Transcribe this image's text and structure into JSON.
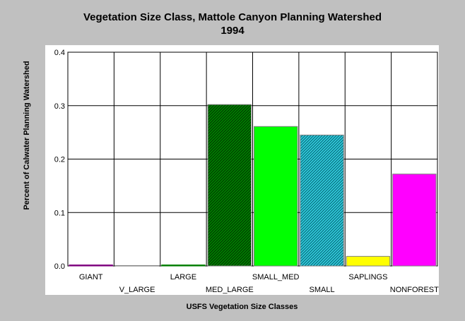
{
  "title_line1": "Vegetation Size Class, Mattole Canyon Planning Watershed",
  "title_line2": "1994",
  "chart_data": {
    "type": "bar",
    "title": "Vegetation Size Class, Mattole Canyon Planning Watershed 1994",
    "xlabel": "USFS Vegetation Size Classes",
    "ylabel": "Percent of Calwater Planning Watershed",
    "ylim": [
      0,
      0.4
    ],
    "yticks": [
      "0.0",
      "0.1",
      "0.2",
      "0.3",
      "0.4"
    ],
    "grid": true,
    "categories": [
      "GIANT",
      "V_LARGE",
      "LARGE",
      "MED_LARGE",
      "SMALL_MED",
      "SMALL",
      "SAPLINGS",
      "NONFOREST"
    ],
    "values": [
      0.002,
      0.0,
      0.002,
      0.302,
      0.261,
      0.245,
      0.018,
      0.172
    ],
    "colors": [
      "#800080",
      "#808080",
      "#008000",
      "#008000",
      "#00ff00",
      "#00a0b0",
      "#ffff00",
      "#ff00ff"
    ],
    "hatched": [
      false,
      false,
      false,
      true,
      false,
      true,
      false,
      false
    ]
  }
}
